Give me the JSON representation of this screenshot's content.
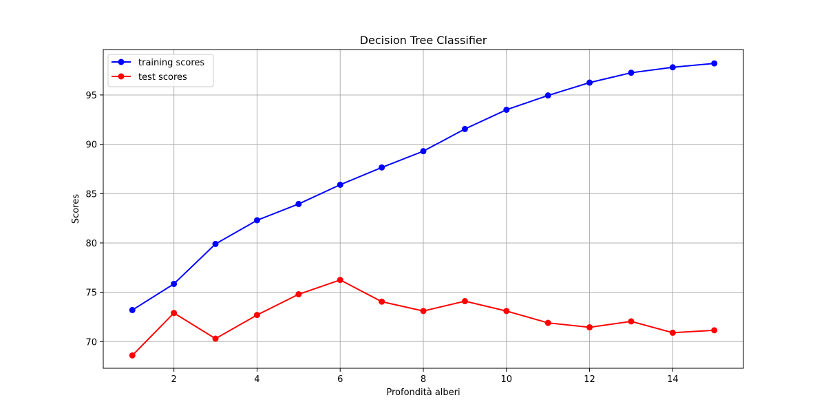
{
  "chart_data": {
    "type": "line",
    "title": "Decision Tree Classifier",
    "xlabel": "Profondità alberi",
    "ylabel": "Scores",
    "xlim": [
      0.3,
      15.7
    ],
    "ylim": [
      67.3,
      99.6
    ],
    "xticks": [
      2,
      4,
      6,
      8,
      10,
      12,
      14
    ],
    "yticks": [
      70,
      75,
      80,
      85,
      90,
      95
    ],
    "grid": true,
    "legend_position": "top-left",
    "x": [
      1,
      2,
      3,
      4,
      5,
      6,
      7,
      8,
      9,
      10,
      11,
      12,
      13,
      14,
      15
    ],
    "series": [
      {
        "name": "training scores",
        "color": "#0000ff",
        "marker": "circle",
        "values": [
          73.2,
          75.85,
          79.9,
          82.3,
          83.95,
          85.9,
          87.65,
          89.3,
          91.55,
          93.5,
          94.95,
          96.25,
          97.25,
          97.8,
          98.2
        ]
      },
      {
        "name": "test scores",
        "color": "#ff0000",
        "marker": "circle",
        "values": [
          68.6,
          72.9,
          70.3,
          72.7,
          74.8,
          76.25,
          74.05,
          73.1,
          74.1,
          73.1,
          71.9,
          71.45,
          72.05,
          70.9,
          71.15
        ]
      }
    ]
  }
}
